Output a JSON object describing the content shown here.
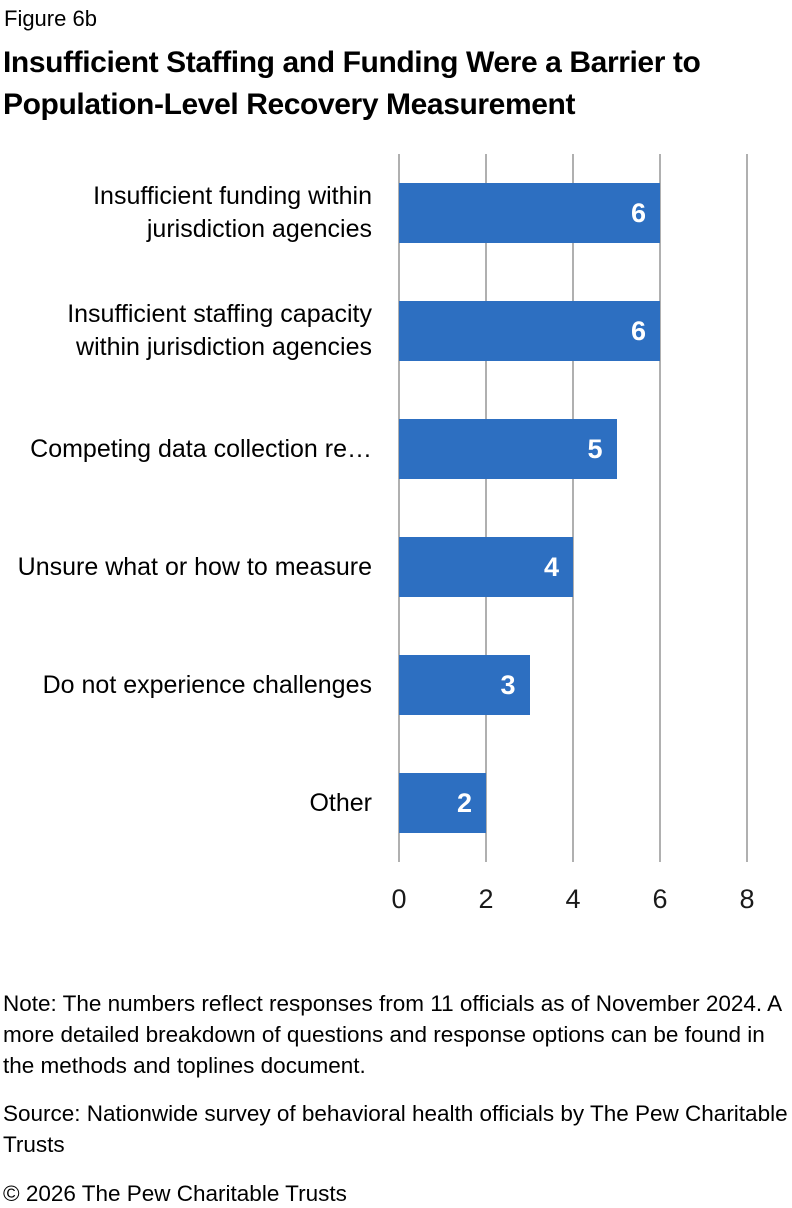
{
  "figure_label": "Figure 6b",
  "title": "Insufficient Staffing and Funding Were a Barrier to Population-Level Recovery Measurement",
  "chart_data": {
    "type": "bar",
    "orientation": "horizontal",
    "categories": [
      "Insufficient funding within jurisdiction agencies",
      "Insufficient staffing capacity within jurisdiction agencies",
      "Competing data collection re…",
      "Unsure what or how to measure",
      "Do not experience challenges",
      "Other"
    ],
    "values": [
      6,
      6,
      5,
      4,
      3,
      2
    ],
    "xlim": [
      0,
      8
    ],
    "x_ticks": [
      0,
      2,
      4,
      6,
      8
    ],
    "grid": true,
    "legend": "none",
    "bar_color": "#2d6fc1",
    "value_label_color": "#ffffff",
    "gridline_color": "#b0b0b0"
  },
  "footer": {
    "note": "Note: The numbers reflect responses from 11 officials as of November 2024. A more detailed breakdown of questions and response options can be found in the methods and toplines document.",
    "source": "Source: Nationwide survey of behavioral health officials by The Pew Charitable Trusts",
    "copyright": "© 2026 The Pew Charitable Trusts"
  }
}
